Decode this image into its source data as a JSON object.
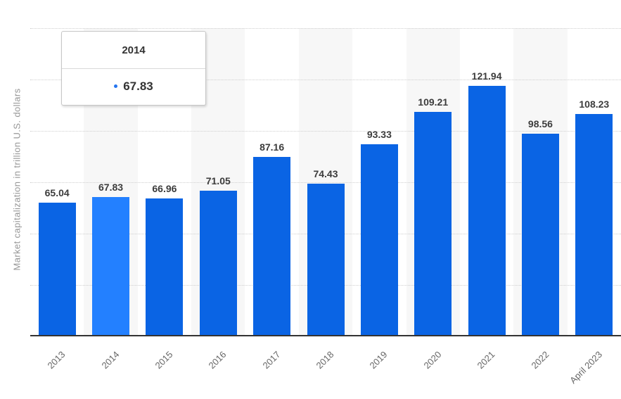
{
  "chart_data": {
    "type": "bar",
    "title": "",
    "categories": [
      "2013",
      "2014",
      "2015",
      "2016",
      "2017",
      "2018",
      "2019",
      "2020",
      "2021",
      "2022",
      "April 2023"
    ],
    "values": [
      65.04,
      67.83,
      66.96,
      71.05,
      87.16,
      74.43,
      93.33,
      109.21,
      121.94,
      98.56,
      108.23
    ],
    "xlabel": "",
    "ylabel": "Market capitalization in trillion U.S. dollars",
    "ylim": [
      0,
      150
    ],
    "grid_interval": 25,
    "grid_style": "dotted-horizontal",
    "legend": "none",
    "highlight_index": 1,
    "alternating_column_bands": "odd-columns-shaded",
    "colors": {
      "bar": "#0a64e4",
      "bar_highlight": "#2380ff",
      "column_band": "#f7f7f7",
      "gridline": "#cfcfcf",
      "axis_line": "#333333",
      "value_label": "#3c3c3c",
      "tick_label": "#666666",
      "axis_title": "#979797",
      "tooltip_marker": "#2575f0"
    }
  },
  "tooltip": {
    "title": "2014",
    "value": "67.83"
  }
}
